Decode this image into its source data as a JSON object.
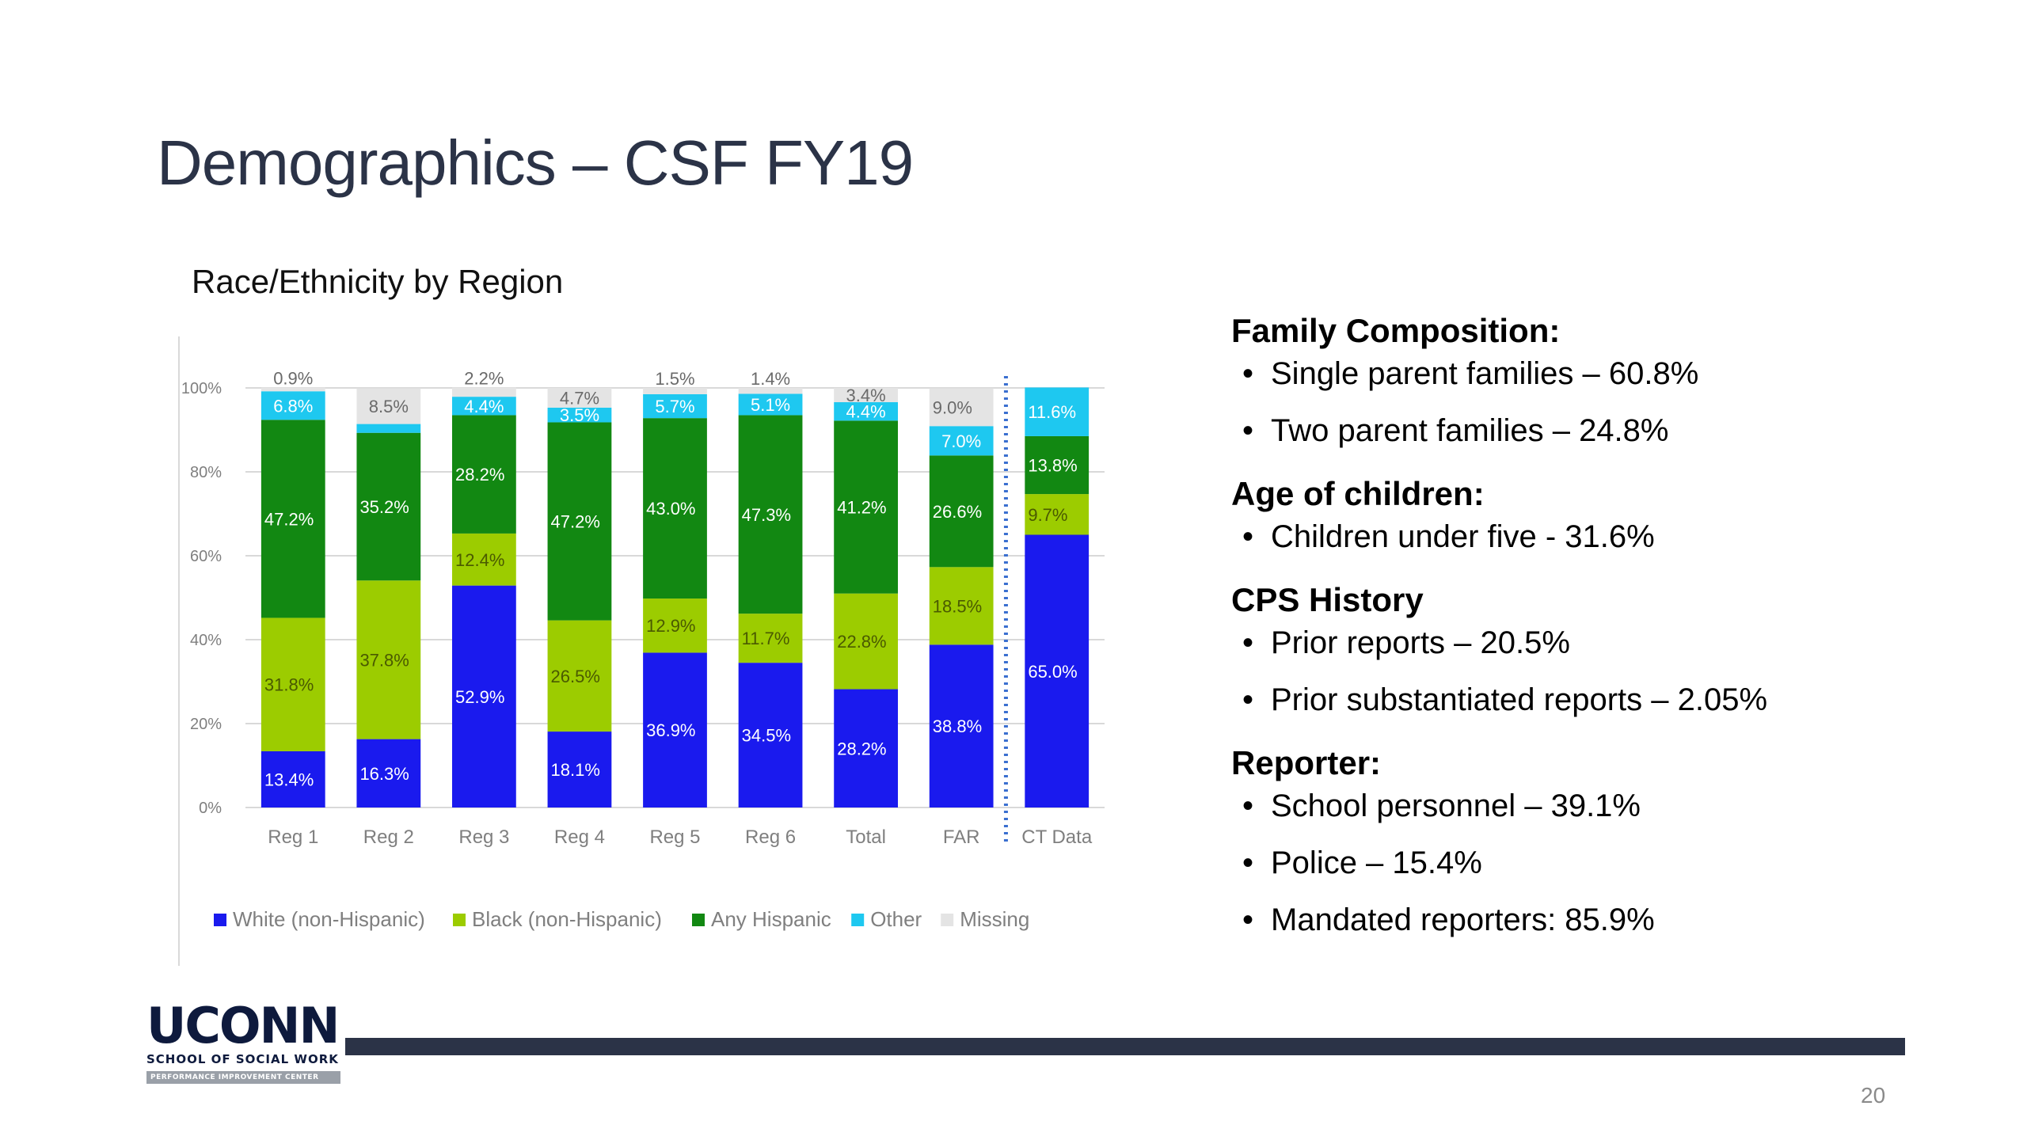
{
  "slide": {
    "title": "Demographics – CSF FY19",
    "page_number": "20"
  },
  "logo": {
    "word": "UCONN",
    "subtitle": "SCHOOL OF SOCIAL WORK",
    "band": "PERFORMANCE IMPROVEMENT CENTER"
  },
  "chart_data": {
    "type": "bar",
    "stacked": true,
    "title": "Race/Ethnicity by Region",
    "categories": [
      "Reg 1",
      "Reg 2",
      "Reg 3",
      "Reg 4",
      "Reg 5",
      "Reg 6",
      "Total",
      "FAR",
      "CT Data"
    ],
    "ylim": [
      0,
      100
    ],
    "yticks": [
      "0%",
      "20%",
      "40%",
      "60%",
      "80%",
      "100%"
    ],
    "grid": true,
    "legend_position": "bottom",
    "series": [
      {
        "name": "White (non-Hispanic)",
        "color": "#1a1aee",
        "labelColor": "#ffffff",
        "values": [
          13.4,
          16.3,
          52.9,
          18.1,
          36.9,
          34.5,
          28.2,
          38.8,
          65.0
        ],
        "labels": [
          "13.4%",
          "16.3%",
          "52.9%",
          "18.1%",
          "36.9%",
          "34.5%",
          "28.2%",
          "38.8%",
          "65.0%"
        ]
      },
      {
        "name": "Black (non-Hispanic)",
        "color": "#9ccc00",
        "labelColor": "#4a5a00",
        "values": [
          31.8,
          37.8,
          12.4,
          26.5,
          12.9,
          11.7,
          22.8,
          18.5,
          9.7
        ],
        "labels": [
          "31.8%",
          "37.8%",
          "12.4%",
          "26.5%",
          "12.9%",
          "11.7%",
          "22.8%",
          "18.5%",
          "9.7%"
        ]
      },
      {
        "name": "Any Hispanic",
        "color": "#128812",
        "labelColor": "#ffffff",
        "values": [
          47.2,
          35.2,
          28.2,
          47.2,
          43.0,
          47.3,
          41.2,
          26.6,
          13.8
        ],
        "labels": [
          "47.2%",
          "35.2%",
          "28.2%",
          "47.2%",
          "43.0%",
          "47.3%",
          "41.2%",
          "26.6%",
          "13.8%"
        ]
      },
      {
        "name": "Other",
        "color": "#1ec8f0",
        "labelColor": "#ffffff",
        "values": [
          6.8,
          2.1,
          4.4,
          3.5,
          5.7,
          5.1,
          4.4,
          7.0,
          11.6
        ],
        "labels": [
          "6.8%",
          "2.1%",
          "4.4%",
          "3.5%",
          "5.7%",
          "5.1%",
          "4.4%",
          "7.0%",
          "11.6%"
        ]
      },
      {
        "name": "Missing",
        "color": "#e4e4e4",
        "labelColor": "#6a6a6a",
        "values": [
          0.9,
          8.5,
          2.2,
          4.7,
          1.5,
          1.4,
          3.4,
          9.0,
          0
        ],
        "labels": [
          "0.9%",
          "8.5%",
          "2.2%",
          "4.7%",
          "1.5%",
          "1.4%",
          "3.4%",
          "9.0%",
          ""
        ]
      }
    ]
  },
  "panel": {
    "sections": [
      {
        "heading": "Family Composition:",
        "items": [
          "Single parent families – 60.8%",
          "Two parent families – 24.8%"
        ]
      },
      {
        "heading": "Age of children:",
        "items": [
          "Children under five  -  31.6%"
        ]
      },
      {
        "heading": "CPS History",
        "items": [
          "Prior reports – 20.5%",
          "Prior substantiated reports – 2.05%"
        ]
      },
      {
        "heading": "Reporter:",
        "items": [
          "School personnel – 39.1%",
          "Police – 15.4%",
          "Mandated reporters: 85.9%"
        ]
      }
    ]
  }
}
